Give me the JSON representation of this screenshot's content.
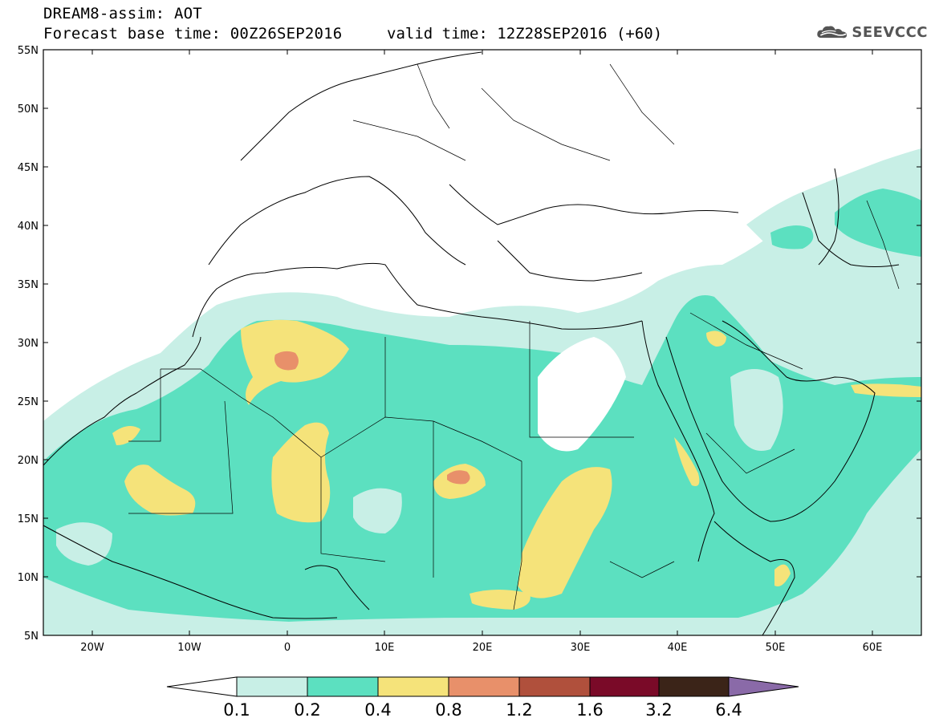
{
  "header": {
    "model_title": "DREAM8-assim: AOT",
    "base_time": "Forecast base time: 00Z26SEP2016",
    "valid_time": "valid time: 12Z28SEP2016 (+60)",
    "logo_text": "SEEVCCC",
    "logo_icon": "cloud-icon"
  },
  "map": {
    "lon_range": [
      -25,
      65
    ],
    "lat_range": [
      5,
      55
    ],
    "lat_ticks": [
      "55N",
      "50N",
      "45N",
      "40N",
      "35N",
      "30N",
      "25N",
      "20N",
      "15N",
      "10N",
      "5N"
    ],
    "lon_ticks": [
      "20W",
      "10W",
      "0",
      "10E",
      "20E",
      "30E",
      "40E",
      "50E",
      "60E"
    ]
  },
  "colorbar": {
    "labels": [
      "0.1",
      "0.2",
      "0.4",
      "0.8",
      "1.2",
      "1.6",
      "3.2",
      "6.4"
    ],
    "colors": [
      "#ffffff",
      "#c8efe6",
      "#5ce0c0",
      "#f5e37a",
      "#e8906a",
      "#b0503c",
      "#7a0a28",
      "#3b2418",
      "#8a6aa8"
    ]
  }
}
